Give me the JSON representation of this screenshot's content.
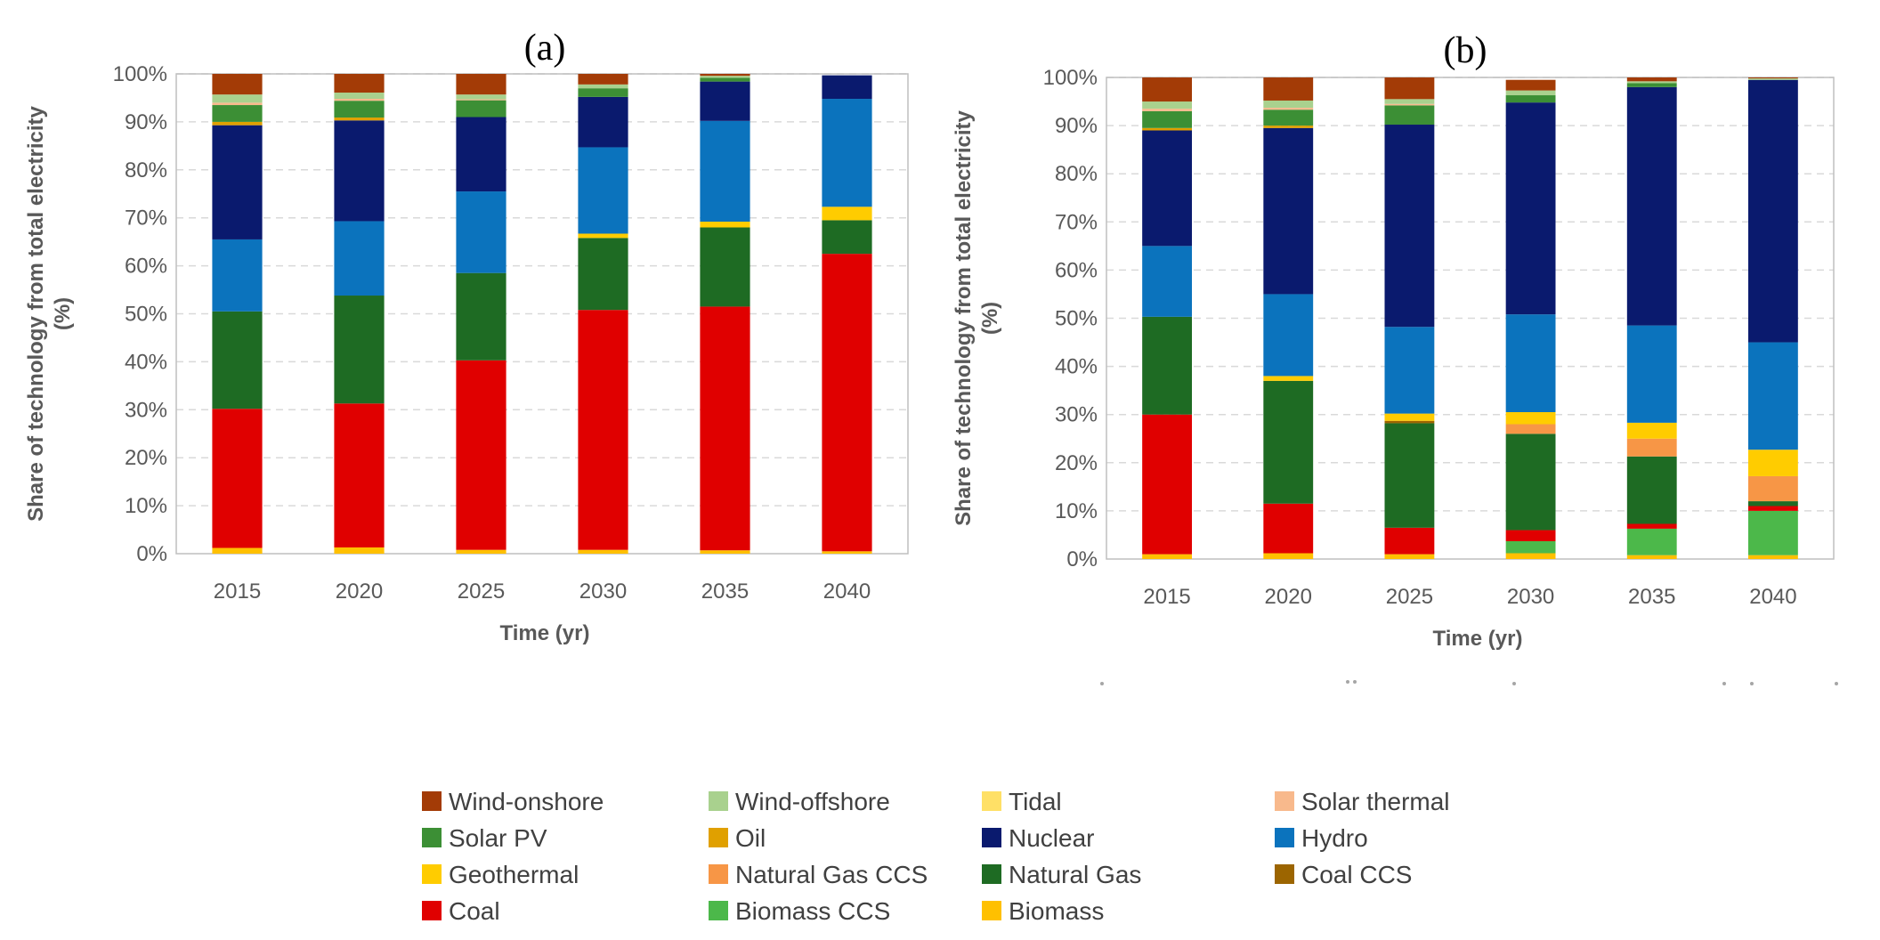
{
  "chart_data": [
    {
      "type": "bar",
      "stacked": true,
      "title": "(a)",
      "xlabel": "Time (yr)",
      "ylabel": "Share of technology from total electricity (%)",
      "ylim": [
        0,
        100
      ],
      "yticks": [
        "0%",
        "10%",
        "20%",
        "30%",
        "40%",
        "50%",
        "60%",
        "70%",
        "80%",
        "90%",
        "100%"
      ],
      "categories": [
        "2015",
        "2020",
        "2025",
        "2030",
        "2035",
        "2040"
      ],
      "series": [
        {
          "name": "Biomass",
          "values": [
            1.2,
            1.3,
            0.8,
            0.8,
            0.7,
            0.5
          ]
        },
        {
          "name": "Coal",
          "values": [
            29,
            30,
            39.5,
            50,
            50.8,
            62
          ]
        },
        {
          "name": "Natural Gas",
          "values": [
            20.3,
            22.5,
            18.2,
            15,
            16.5,
            7
          ]
        },
        {
          "name": "Geothermal",
          "values": [
            0,
            0,
            0,
            0.9,
            1.2,
            2.8
          ]
        },
        {
          "name": "Hydro",
          "values": [
            15,
            15.5,
            17,
            18,
            21,
            22.5
          ]
        },
        {
          "name": "Nuclear",
          "values": [
            23.8,
            21,
            15.5,
            10.5,
            8.2,
            4.9
          ]
        },
        {
          "name": "Oil",
          "values": [
            0.7,
            0.6,
            0,
            0,
            0,
            0
          ]
        },
        {
          "name": "Solar PV",
          "values": [
            3.5,
            3.5,
            3.5,
            1.8,
            0.8,
            0
          ]
        },
        {
          "name": "Solar thermal",
          "values": [
            0.5,
            0.4,
            0.2,
            0,
            0,
            0
          ]
        },
        {
          "name": "Wind-offshore",
          "values": [
            1.7,
            1.3,
            1.0,
            0.8,
            0.4,
            0
          ]
        },
        {
          "name": "Wind-onshore",
          "values": [
            4.3,
            3.9,
            4.3,
            2.2,
            0.4,
            0
          ]
        }
      ]
    },
    {
      "type": "bar",
      "stacked": true,
      "title": "(b)",
      "xlabel": "Time (yr)",
      "ylabel": "Share of technology from total electricity (%)",
      "ylim": [
        0,
        100
      ],
      "yticks": [
        "0%",
        "10%",
        "20%",
        "30%",
        "40%",
        "50%",
        "60%",
        "70%",
        "80%",
        "90%",
        "100%"
      ],
      "categories": [
        "2015",
        "2020",
        "2025",
        "2030",
        "2035",
        "2040"
      ],
      "series": [
        {
          "name": "Biomass",
          "values": [
            1.0,
            1.2,
            1.0,
            1.2,
            0.8,
            0.8
          ]
        },
        {
          "name": "Biomass CCS",
          "values": [
            0,
            0,
            0,
            2.5,
            5.5,
            9.2
          ]
        },
        {
          "name": "Coal",
          "values": [
            29,
            10.3,
            5.5,
            2.3,
            1.0,
            1.0
          ]
        },
        {
          "name": "Natural Gas",
          "values": [
            20.3,
            25.5,
            21.7,
            20,
            14,
            1.0
          ]
        },
        {
          "name": "Coal CCS",
          "values": [
            0,
            0,
            0.5,
            0,
            0,
            0
          ]
        },
        {
          "name": "Natural Gas CCS",
          "values": [
            0,
            0,
            0,
            2.0,
            3.7,
            5.2
          ]
        },
        {
          "name": "Geothermal",
          "values": [
            0,
            1.0,
            1.5,
            2.5,
            3.3,
            5.5
          ]
        },
        {
          "name": "Hydro",
          "values": [
            14.7,
            17,
            18,
            20.3,
            20.2,
            22.3
          ]
        },
        {
          "name": "Nuclear",
          "values": [
            24,
            34.5,
            42,
            44,
            49.5,
            54.5
          ]
        },
        {
          "name": "Oil",
          "values": [
            0.5,
            0.5,
            0,
            0,
            0,
            0
          ]
        },
        {
          "name": "Solar PV",
          "values": [
            3.5,
            3.3,
            4.0,
            1.5,
            0.8,
            0
          ]
        },
        {
          "name": "Tidal",
          "values": [
            0,
            0,
            0,
            0,
            0,
            0
          ]
        },
        {
          "name": "Solar thermal",
          "values": [
            0.5,
            0.4,
            0.3,
            0,
            0,
            0
          ]
        },
        {
          "name": "Wind-offshore",
          "values": [
            1.5,
            1.5,
            1.0,
            1.0,
            0.4,
            0.3
          ]
        },
        {
          "name": "Wind-onshore",
          "values": [
            5.0,
            4.8,
            4.5,
            2.2,
            0.8,
            0.2
          ]
        }
      ]
    }
  ],
  "colors": {
    "Wind-onshore": "#a33b06",
    "Wind-offshore": "#a9d18e",
    "Tidal": "#ffe066",
    "Solar thermal": "#f8b98c",
    "Solar PV": "#3c8f35",
    "Oil": "#e0a000",
    "Nuclear": "#0a1a6e",
    "Hydro": "#0b73bd",
    "Geothermal": "#ffcc00",
    "Natural Gas CCS": "#f79646",
    "Natural Gas": "#1e6b23",
    "Coal CCS": "#9c6500",
    "Coal": "#e00000",
    "Biomass CCS": "#4cb84a",
    "Biomass": "#ffc000"
  },
  "legend": {
    "items": [
      "Wind-onshore",
      "Wind-offshore",
      "Tidal",
      "Solar thermal",
      "Solar PV",
      "Oil",
      "Nuclear",
      "Hydro",
      "Geothermal",
      "Natural Gas CCS",
      "Natural Gas",
      "Coal CCS",
      "Coal",
      "Biomass CCS",
      "Biomass"
    ]
  }
}
